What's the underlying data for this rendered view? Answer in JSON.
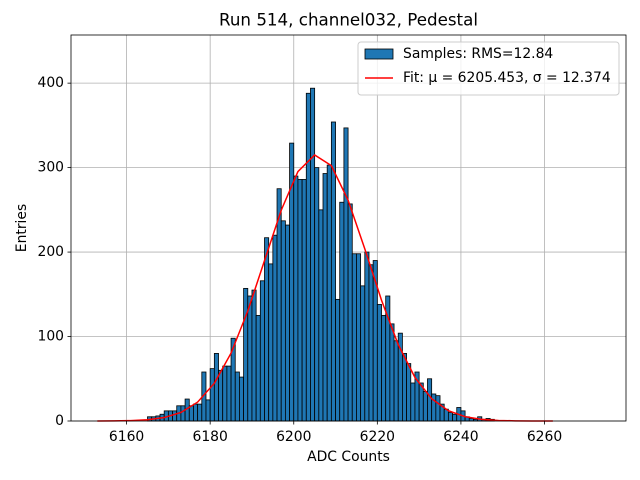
{
  "chart_data": {
    "type": "histogram",
    "title": "Run 514, channel032, Pedestal",
    "xlabel": "ADC Counts",
    "ylabel": "Entries",
    "xlim": [
      6146.7,
      6279.5
    ],
    "ylim": [
      0,
      457
    ],
    "xticks": [
      6160,
      6180,
      6200,
      6220,
      6240,
      6260
    ],
    "yticks": [
      0,
      100,
      200,
      300,
      400
    ],
    "grid": true,
    "legend": "upper right",
    "histogram": {
      "name": "Samples: RMS=12.84",
      "color": "#1f77b4",
      "bins": [
        6165,
        6166,
        6167,
        6168,
        6169,
        6170,
        6171,
        6172,
        6173,
        6174,
        6175,
        6176,
        6177,
        6178,
        6179,
        6180,
        6181,
        6182,
        6183,
        6184,
        6185,
        6186,
        6187,
        6188,
        6189,
        6190,
        6191,
        6192,
        6193,
        6194,
        6195,
        6196,
        6197,
        6198,
        6199,
        6200,
        6201,
        6202,
        6203,
        6204,
        6205,
        6206,
        6207,
        6208,
        6209,
        6210,
        6211,
        6212,
        6213,
        6214,
        6215,
        6216,
        6217,
        6218,
        6219,
        6220,
        6221,
        6222,
        6223,
        6224,
        6225,
        6226,
        6227,
        6228,
        6229,
        6230,
        6231,
        6232,
        6233,
        6234,
        6235,
        6236,
        6237,
        6238,
        6239,
        6240,
        6241,
        6242,
        6243,
        6244,
        6245,
        6246,
        6247,
        6248
      ],
      "counts": [
        5,
        5,
        6,
        8,
        12,
        12,
        12,
        18,
        18,
        26,
        18,
        20,
        20,
        58,
        25,
        62,
        80,
        60,
        65,
        65,
        98,
        58,
        52,
        157,
        148,
        155,
        125,
        166,
        217,
        186,
        220,
        275,
        237,
        232,
        329,
        290,
        286,
        286,
        388,
        394,
        300,
        250,
        293,
        303,
        354,
        144,
        259,
        347,
        257,
        198,
        198,
        160,
        200,
        185,
        190,
        138,
        125,
        148,
        115,
        95,
        104,
        80,
        68,
        45,
        58,
        45,
        35,
        50,
        32,
        30,
        20,
        14,
        10,
        8,
        16,
        12,
        5,
        3,
        2,
        5,
        2,
        3,
        2
      ]
    },
    "fit": {
      "name": "Fit: μ = 6205.453, σ = 12.374",
      "color": "#ff0000",
      "x": [
        6153,
        6157,
        6161,
        6165,
        6169,
        6173,
        6177,
        6181,
        6185,
        6189,
        6193,
        6197,
        6201,
        6205,
        6209,
        6213,
        6217,
        6221,
        6225,
        6229,
        6233,
        6237,
        6241,
        6245,
        6249,
        6253,
        6257,
        6262
      ],
      "values": [
        0.04,
        0.15,
        0.5,
        1.5,
        4.1,
        10.1,
        22.4,
        44.7,
        80.4,
        130.2,
        189.9,
        249.5,
        295.3,
        315,
        302.3,
        261.5,
        203.8,
        143.0,
        90.4,
        51.5,
        26.4,
        12.2,
        5.1,
        1.9,
        0.6,
        0.2,
        0.05,
        0.01
      ]
    }
  }
}
